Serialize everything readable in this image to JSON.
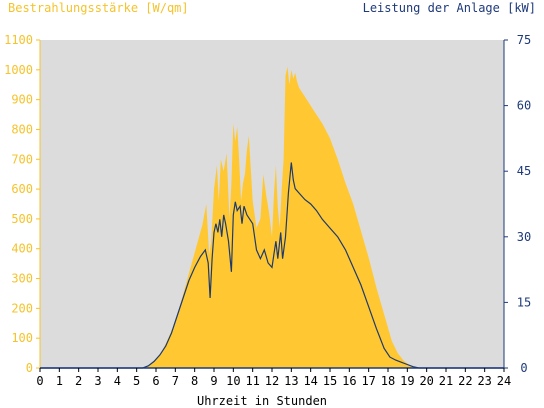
{
  "header": {
    "left_title": "Bestrahlungsstärke [W/qm]",
    "right_title": "Leistung der Anlage [kW]"
  },
  "chart_data": {
    "type": "area",
    "xlabel": "Uhrzeit in Stunden",
    "x_ticks": [
      "0",
      "1",
      "2",
      "3",
      "4",
      "5",
      "6",
      "7",
      "8",
      "9",
      "10",
      "11",
      "12",
      "13",
      "14",
      "15",
      "16",
      "17",
      "18",
      "19",
      "20",
      "21",
      "22",
      "23",
      "24"
    ],
    "xlim": [
      0,
      24
    ],
    "left_axis": {
      "label": "Bestrahlungsstärke [W/qm]",
      "ylim": [
        0,
        1100
      ],
      "ticks": [
        "0",
        "100",
        "200",
        "300",
        "400",
        "500",
        "600",
        "700",
        "800",
        "900",
        "1000",
        "1100"
      ]
    },
    "right_axis": {
      "label": "Leistung der Anlage [kW]",
      "ylim": [
        0,
        75
      ],
      "ticks": [
        "0",
        "15",
        "30",
        "45",
        "60",
        "75"
      ]
    },
    "grid": false,
    "colors": {
      "plot_bg": "#dcdcdc",
      "irradiance": "#ffc832",
      "power": "#1e3a6e",
      "left_axis": "#f5c32c",
      "right_axis": "#1e3a7a"
    },
    "series": [
      {
        "name": "Bestrahlungsstärke [W/qm]",
        "axis": "left",
        "x": [
          0,
          5.2,
          5.5,
          5.8,
          6.0,
          6.3,
          6.6,
          6.9,
          7.2,
          7.5,
          7.8,
          8.1,
          8.4,
          8.6,
          8.75,
          8.85,
          9.0,
          9.15,
          9.25,
          9.35,
          9.5,
          9.65,
          9.8,
          9.9,
          10.0,
          10.1,
          10.2,
          10.3,
          10.4,
          10.5,
          10.6,
          10.7,
          10.8,
          11.0,
          11.2,
          11.4,
          11.55,
          11.7,
          11.85,
          12.0,
          12.1,
          12.2,
          12.3,
          12.4,
          12.5,
          12.6,
          12.7,
          12.8,
          12.9,
          13.0,
          13.1,
          13.2,
          13.3,
          13.4,
          13.5,
          13.8,
          14.2,
          14.6,
          15.0,
          15.4,
          15.8,
          16.2,
          16.6,
          17.0,
          17.4,
          17.8,
          18.2,
          18.5,
          18.8,
          19.1,
          19.4,
          19.6,
          20,
          24
        ],
        "values": [
          0,
          0,
          5,
          15,
          30,
          55,
          95,
          140,
          200,
          270,
          340,
          410,
          480,
          550,
          380,
          420,
          600,
          680,
          560,
          700,
          660,
          720,
          500,
          620,
          820,
          760,
          810,
          700,
          560,
          620,
          650,
          730,
          780,
          560,
          470,
          500,
          650,
          580,
          520,
          440,
          580,
          680,
          540,
          470,
          600,
          700,
          980,
          1010,
          950,
          1000,
          970,
          990,
          960,
          940,
          930,
          900,
          860,
          820,
          770,
          700,
          620,
          550,
          460,
          370,
          270,
          180,
          90,
          50,
          25,
          10,
          3,
          0,
          0,
          0
        ]
      },
      {
        "name": "Leistung der Anlage [kW]",
        "axis": "right",
        "x": [
          0,
          5.3,
          5.6,
          5.9,
          6.2,
          6.5,
          6.8,
          7.1,
          7.4,
          7.7,
          8.0,
          8.3,
          8.55,
          8.7,
          8.8,
          8.9,
          9.0,
          9.1,
          9.2,
          9.3,
          9.4,
          9.5,
          9.6,
          9.75,
          9.9,
          10.0,
          10.1,
          10.2,
          10.35,
          10.45,
          10.55,
          10.7,
          10.85,
          11.0,
          11.2,
          11.4,
          11.6,
          11.8,
          12.0,
          12.1,
          12.2,
          12.3,
          12.45,
          12.55,
          12.7,
          12.85,
          13.0,
          13.1,
          13.2,
          13.4,
          13.7,
          14.0,
          14.3,
          14.6,
          15.0,
          15.4,
          15.8,
          16.2,
          16.6,
          17.0,
          17.4,
          17.8,
          18.1,
          18.4,
          18.7,
          19.0,
          19.3,
          19.6,
          24
        ],
        "values": [
          0,
          0,
          0.5,
          1.5,
          3,
          5,
          8,
          12,
          16,
          20,
          23,
          25.5,
          27,
          24,
          16,
          25,
          31,
          33,
          31,
          34,
          30,
          35,
          33,
          29,
          22,
          35,
          38,
          36,
          37,
          33,
          37,
          35,
          34,
          33,
          27,
          25,
          27,
          24,
          23,
          26,
          29,
          25,
          31,
          25,
          30,
          40,
          47,
          43,
          41,
          40,
          38.5,
          37.5,
          36,
          34,
          32,
          30,
          27,
          23,
          19,
          14,
          9,
          4.5,
          2.5,
          1.8,
          1.3,
          0.8,
          0.3,
          0,
          0
        ]
      }
    ]
  }
}
